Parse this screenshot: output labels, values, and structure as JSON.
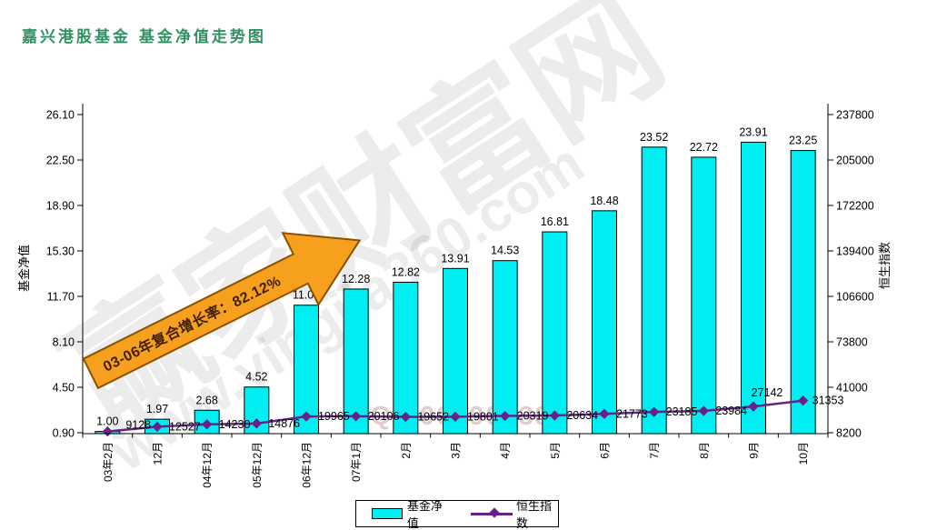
{
  "page": {
    "title": "嘉兴港股基金  基金净值走势图"
  },
  "watermark": {
    "site_name": "赢家财富网",
    "site_url": "www.yingjia360.com",
    "qq": "QQ:4000900388"
  },
  "annotation": {
    "arrow_text": "03-06年复合增长率：82.12%"
  },
  "colors": {
    "title_green": "#2f9263",
    "bar_fill": "#00eef2",
    "bar_border": "#000000",
    "line_purple": "#662288",
    "arrow_fill": "#f7a01d",
    "arrow_border": "#8a5200",
    "arrow_text": "#3f2000",
    "axis": "#000000"
  },
  "legend": {
    "items": [
      {
        "label": "基金净值",
        "type": "bar"
      },
      {
        "label": "恒生指数",
        "type": "line"
      }
    ]
  },
  "chart_data": {
    "type": "bar+line combo",
    "title": "嘉兴港股基金 基金净值走势图",
    "categories": [
      "03年2月",
      "12月",
      "04年12月",
      "05年12月",
      "06年12月",
      "07年1月",
      "2月",
      "3月",
      "4月",
      "5月",
      "6月",
      "7月",
      "8月",
      "9月",
      "10月"
    ],
    "series": [
      {
        "name": "基金净值",
        "type": "bar",
        "axis": "left",
        "values": [
          1.0,
          1.97,
          2.68,
          4.52,
          11.0,
          12.28,
          12.82,
          13.91,
          14.53,
          16.81,
          18.48,
          23.52,
          22.72,
          23.91,
          23.25
        ]
      },
      {
        "name": "恒生指数",
        "type": "line",
        "axis": "right",
        "values": [
          9128,
          12527,
          14230,
          14876,
          19965,
          20106,
          19652,
          19801,
          20319,
          20634,
          21773,
          23185,
          23984,
          27142,
          31353
        ]
      }
    ],
    "left_axis": {
      "label": "基金净值",
      "min": 0.9,
      "max": 26.1,
      "ticks": [
        0.9,
        4.5,
        8.1,
        11.7,
        15.3,
        18.9,
        22.5,
        26.1
      ]
    },
    "right_axis": {
      "label": "恒生指数",
      "min": 8200,
      "max": 237800,
      "ticks": [
        8200,
        41000,
        73800,
        106600,
        139400,
        172200,
        205000,
        237800
      ]
    },
    "grid": false,
    "legend_position": "bottom",
    "annotation_text": "03-06年复合增长率：82.12%"
  }
}
